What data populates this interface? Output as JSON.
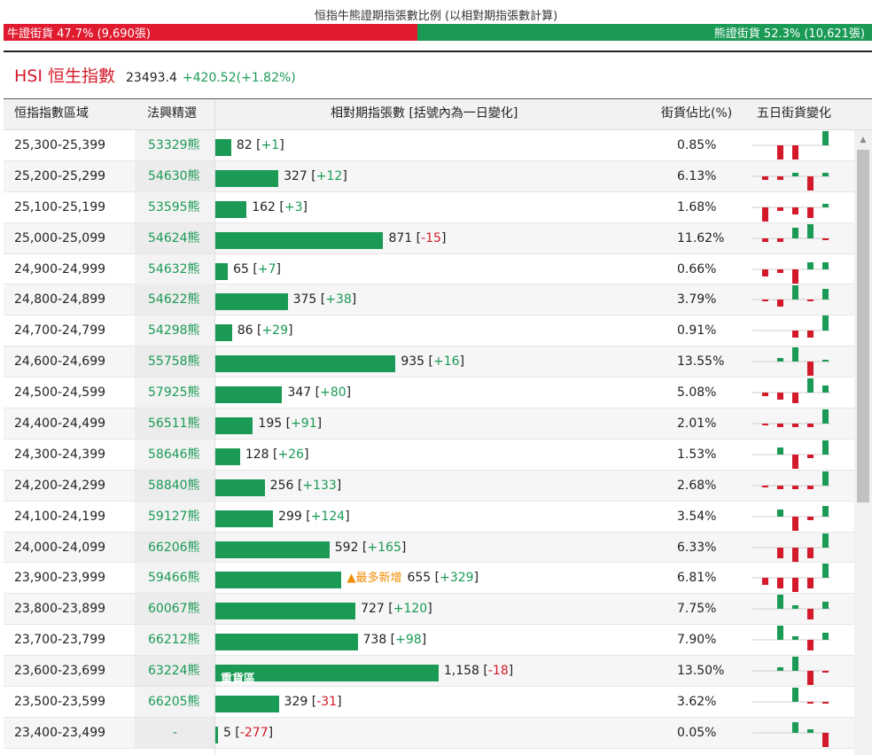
{
  "title": "恒指牛熊證期指張數比例 (以相對期指張數計算)",
  "ratio": {
    "bull_label": "牛證街貨 47.7% (9,690張)",
    "bear_label": "熊證街貨 52.3% (10,621張)",
    "bull_pct": 47.7,
    "bear_pct": 52.3,
    "bull_color": "#e01b2f",
    "bear_color": "#1a9a55"
  },
  "hsi": {
    "name": "HSI 恒生指數",
    "value": "23493.4",
    "change": "+420.52(+1.82%)"
  },
  "headers": {
    "range": "恒指指數區域",
    "code": "法興精選",
    "contracts": "相對期指張數 [括號內為一日變化]",
    "pct": "街貨佔比(%)",
    "spark": "五日街貨變化"
  },
  "rows": [
    {
      "range": "25,300-25,399",
      "code": "53329熊",
      "count": 82,
      "count_text": "82",
      "chg_text": "+1",
      "chg_up": true,
      "pct": "0.85%",
      "tag": "",
      "spark": [
        0,
        -4,
        -4,
        0,
        4
      ]
    },
    {
      "range": "25,200-25,299",
      "code": "54630熊",
      "count": 327,
      "count_text": "327",
      "chg_text": "+12",
      "chg_up": true,
      "pct": "6.13%",
      "tag": "",
      "spark": [
        -1,
        -1,
        1,
        -4,
        1
      ]
    },
    {
      "range": "25,100-25,199",
      "code": "53595熊",
      "count": 162,
      "count_text": "162",
      "chg_text": "+3",
      "chg_up": true,
      "pct": "1.68%",
      "tag": "",
      "spark": [
        -4,
        -1,
        -2,
        -3,
        1
      ]
    },
    {
      "range": "25,000-25,099",
      "code": "54624熊",
      "count": 871,
      "count_text": "871",
      "chg_text": "-15",
      "chg_up": false,
      "pct": "11.62%",
      "tag": "",
      "spark": [
        -1,
        -1,
        3,
        4,
        -0.5
      ]
    },
    {
      "range": "24,900-24,999",
      "code": "54632熊",
      "count": 65,
      "count_text": "65",
      "chg_text": "+7",
      "chg_up": true,
      "pct": "0.66%",
      "tag": "",
      "spark": [
        -2,
        -1,
        -4,
        2,
        2
      ]
    },
    {
      "range": "24,800-24,899",
      "code": "54622熊",
      "count": 375,
      "count_text": "375",
      "chg_text": "+38",
      "chg_up": true,
      "pct": "3.79%",
      "tag": "",
      "spark": [
        -0.5,
        -2,
        4,
        -0.5,
        3
      ]
    },
    {
      "range": "24,700-24,799",
      "code": "54298熊",
      "count": 86,
      "count_text": "86",
      "chg_text": "+29",
      "chg_up": true,
      "pct": "0.91%",
      "tag": "",
      "spark": [
        0,
        0,
        -2,
        -2,
        5
      ]
    },
    {
      "range": "24,600-24,699",
      "code": "55758熊",
      "count": 935,
      "count_text": "935",
      "chg_text": "+16",
      "chg_up": true,
      "pct": "13.55%",
      "tag": "",
      "spark": [
        0,
        1,
        4,
        -4,
        0.5
      ]
    },
    {
      "range": "24,500-24,599",
      "code": "57925熊",
      "count": 347,
      "count_text": "347",
      "chg_text": "+80",
      "chg_up": true,
      "pct": "5.08%",
      "tag": "",
      "spark": [
        -1,
        -2,
        -3,
        4,
        2
      ]
    },
    {
      "range": "24,400-24,499",
      "code": "56511熊",
      "count": 195,
      "count_text": "195",
      "chg_text": "+91",
      "chg_up": true,
      "pct": "2.01%",
      "tag": "",
      "spark": [
        -0.5,
        -1,
        -1,
        -1,
        4
      ]
    },
    {
      "range": "24,300-24,399",
      "code": "58646熊",
      "count": 128,
      "count_text": "128",
      "chg_text": "+26",
      "chg_up": true,
      "pct": "1.53%",
      "tag": "",
      "spark": [
        0,
        2,
        -4,
        -1,
        4
      ]
    },
    {
      "range": "24,200-24,299",
      "code": "58840熊",
      "count": 256,
      "count_text": "256",
      "chg_text": "+133",
      "chg_up": true,
      "pct": "2.68%",
      "tag": "",
      "spark": [
        -0.5,
        -1,
        -1,
        -1,
        4
      ]
    },
    {
      "range": "24,100-24,199",
      "code": "59127熊",
      "count": 299,
      "count_text": "299",
      "chg_text": "+124",
      "chg_up": true,
      "pct": "3.54%",
      "tag": "",
      "spark": [
        0,
        2,
        -4,
        -1,
        3
      ]
    },
    {
      "range": "24,000-24,099",
      "code": "66206熊",
      "count": 592,
      "count_text": "592",
      "chg_text": "+165",
      "chg_up": true,
      "pct": "6.33%",
      "tag": "",
      "spark": [
        0,
        -3,
        -4,
        -3,
        4
      ]
    },
    {
      "range": "23,900-23,999",
      "code": "59466熊",
      "count": 655,
      "count_text": "655",
      "chg_text": "+329",
      "chg_up": true,
      "pct": "6.81%",
      "tag": "most",
      "tag_text": "▲最多新增",
      "spark": [
        -2,
        -3,
        -4,
        -3,
        4
      ]
    },
    {
      "range": "23,800-23,899",
      "code": "60067熊",
      "count": 727,
      "count_text": "727",
      "chg_text": "+120",
      "chg_up": true,
      "pct": "7.75%",
      "tag": "",
      "spark": [
        0,
        4,
        1,
        -3,
        2
      ]
    },
    {
      "range": "23,700-23,799",
      "code": "66212熊",
      "count": 738,
      "count_text": "738",
      "chg_text": "+98",
      "chg_up": true,
      "pct": "7.90%",
      "tag": "",
      "spark": [
        0,
        4,
        1,
        -3,
        2
      ]
    },
    {
      "range": "23,600-23,699",
      "code": "63224熊",
      "count": 1158,
      "count_text": "1,158",
      "chg_text": "-18",
      "chg_up": false,
      "pct": "13.50%",
      "tag": "heavy",
      "tag_text": "重貨區",
      "spark": [
        0,
        1,
        4,
        -4,
        -0.5
      ]
    },
    {
      "range": "23,500-23,599",
      "code": "66205熊",
      "count": 329,
      "count_text": "329",
      "chg_text": "-31",
      "chg_up": false,
      "pct": "3.62%",
      "tag": "",
      "spark": [
        0,
        0,
        4,
        -0.5,
        -0.5
      ]
    },
    {
      "range": "23,400-23,499",
      "code": "-",
      "count": 5,
      "count_text": "5",
      "chg_text": "-277",
      "chg_up": false,
      "pct": "0.05%",
      "tag": "",
      "spark": [
        0,
        0,
        3,
        1,
        -4
      ]
    }
  ]
}
